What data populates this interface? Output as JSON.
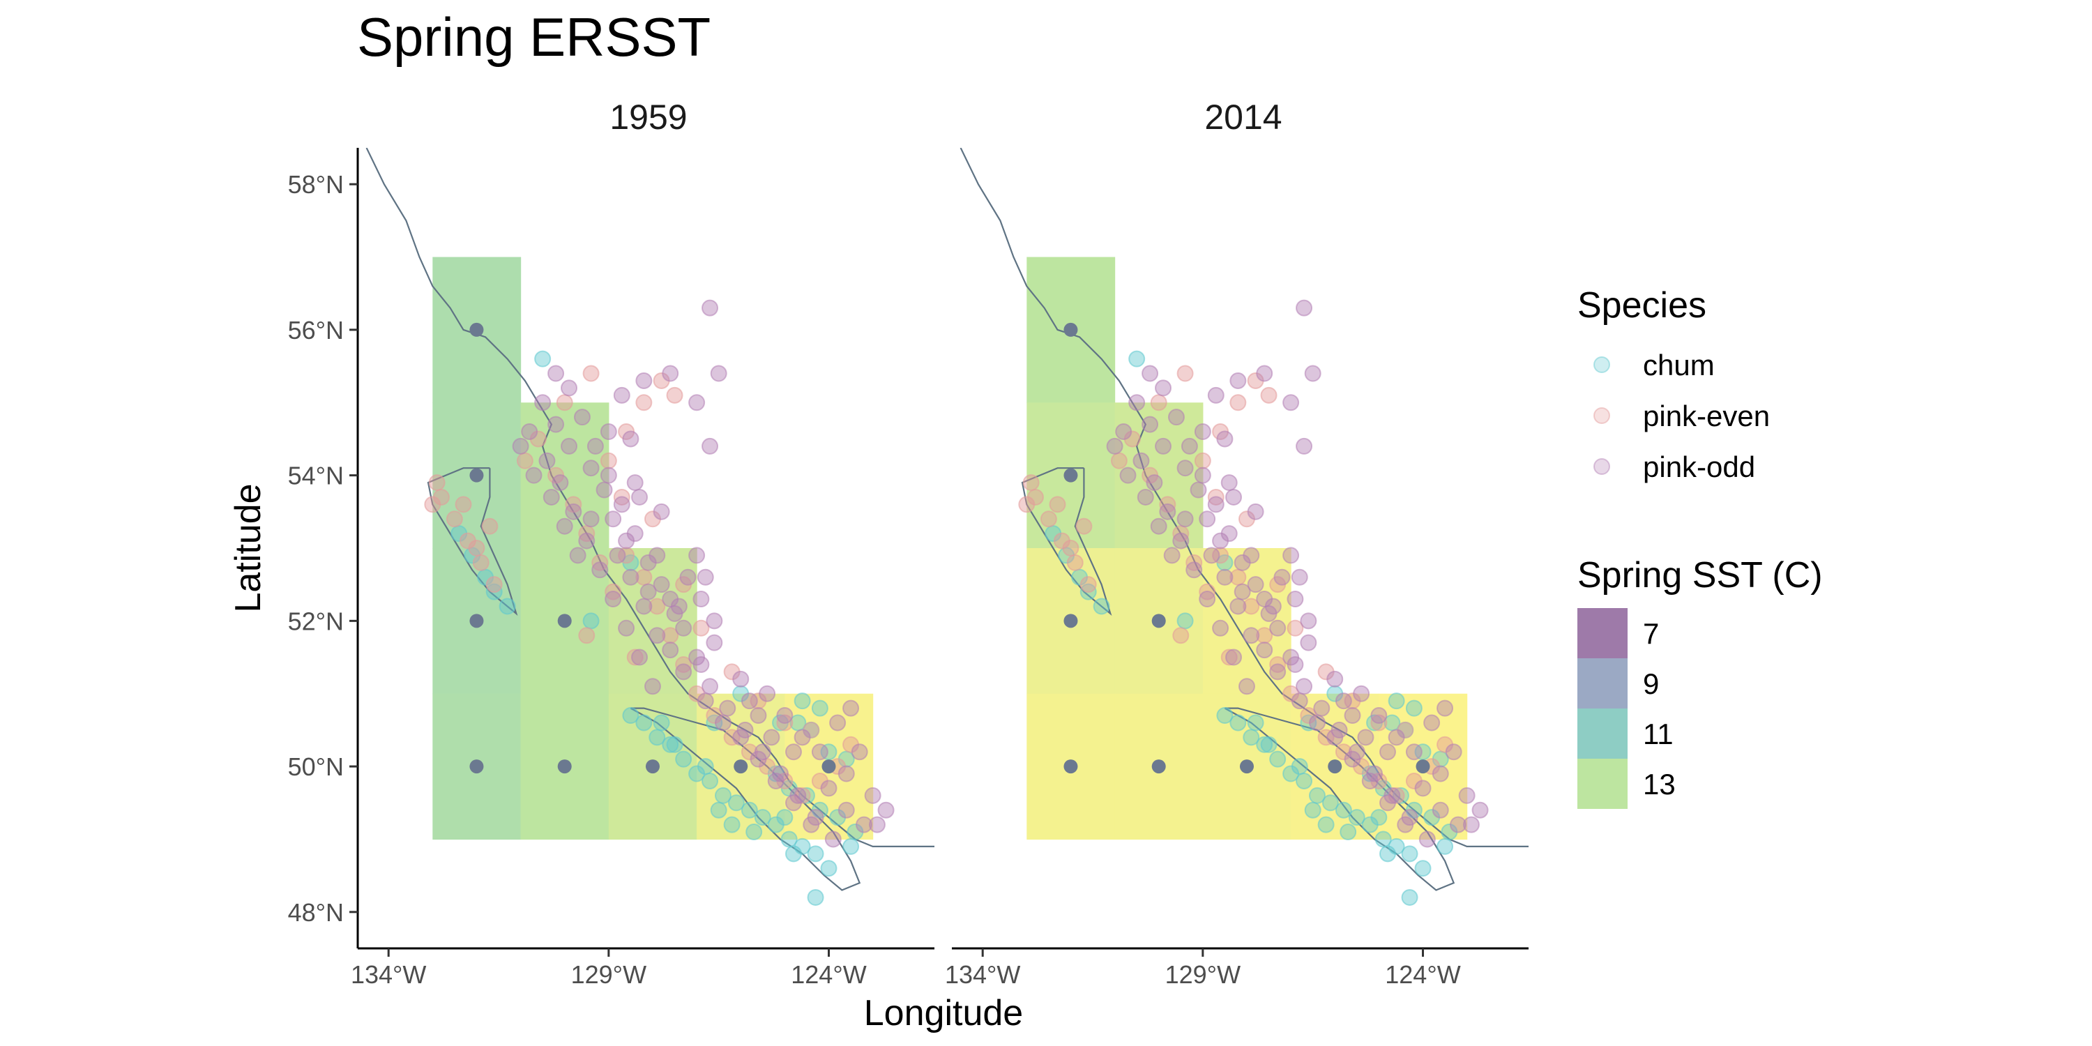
{
  "chart_data": {
    "type": "map",
    "title": "Spring ERSST",
    "xlabel": "Longitude",
    "ylabel": "Latitude",
    "xlim": [
      -134.7,
      -121.6
    ],
    "ylim": [
      47.5,
      58.5
    ],
    "x_ticks": [
      {
        "value": -134,
        "label": "134°W"
      },
      {
        "value": -129,
        "label": "129°W"
      },
      {
        "value": -124,
        "label": "124°W"
      }
    ],
    "y_ticks": [
      {
        "value": 48,
        "label": "48°N"
      },
      {
        "value": 50,
        "label": "50°N"
      },
      {
        "value": 52,
        "label": "52°N"
      },
      {
        "value": 54,
        "label": "54°N"
      },
      {
        "value": 56,
        "label": "56°N"
      },
      {
        "value": 58,
        "label": "58°N"
      }
    ],
    "panels": [
      {
        "year": "1959",
        "cells": [
          {
            "lon": -132,
            "lat": 56,
            "sst": 12.3
          },
          {
            "lon": -132,
            "lat": 54,
            "sst": 12.3
          },
          {
            "lon": -130,
            "lat": 54,
            "sst": 13.0
          },
          {
            "lon": -132,
            "lat": 52,
            "sst": 12.3
          },
          {
            "lon": -130,
            "lat": 52,
            "sst": 13.0
          },
          {
            "lon": -128,
            "lat": 52,
            "sst": 13.4
          },
          {
            "lon": -132,
            "lat": 50,
            "sst": 12.4
          },
          {
            "lon": -130,
            "lat": 50,
            "sst": 13.0
          },
          {
            "lon": -128,
            "lat": 50,
            "sst": 13.5
          },
          {
            "lon": -126,
            "lat": 50,
            "sst": 14.3
          },
          {
            "lon": -124,
            "lat": 50,
            "sst": 14.6
          }
        ],
        "cell_centres": [
          {
            "lon": -132,
            "lat": 56
          },
          {
            "lon": -132,
            "lat": 54
          },
          {
            "lon": -132,
            "lat": 52
          },
          {
            "lon": -130,
            "lat": 52
          },
          {
            "lon": -132,
            "lat": 50
          },
          {
            "lon": -130,
            "lat": 50
          },
          {
            "lon": -128,
            "lat": 50
          },
          {
            "lon": -126,
            "lat": 50
          },
          {
            "lon": -124,
            "lat": 50
          }
        ]
      },
      {
        "year": "2014",
        "cells": [
          {
            "lon": -132,
            "lat": 56,
            "sst": 13.0
          },
          {
            "lon": -132,
            "lat": 54,
            "sst": 13.3
          },
          {
            "lon": -130,
            "lat": 54,
            "sst": 13.5
          },
          {
            "lon": -132,
            "lat": 52,
            "sst": 14.3
          },
          {
            "lon": -130,
            "lat": 52,
            "sst": 14.3
          },
          {
            "lon": -128,
            "lat": 52,
            "sst": 14.5
          },
          {
            "lon": -132,
            "lat": 50,
            "sst": 14.5
          },
          {
            "lon": -130,
            "lat": 50,
            "sst": 14.5
          },
          {
            "lon": -128,
            "lat": 50,
            "sst": 14.5
          },
          {
            "lon": -126,
            "lat": 50,
            "sst": 14.6
          },
          {
            "lon": -124,
            "lat": 50,
            "sst": 14.7
          }
        ],
        "cell_centres": [
          {
            "lon": -132,
            "lat": 56
          },
          {
            "lon": -132,
            "lat": 54
          },
          {
            "lon": -132,
            "lat": 52
          },
          {
            "lon": -130,
            "lat": 52
          },
          {
            "lon": -132,
            "lat": 50
          },
          {
            "lon": -130,
            "lat": 50
          },
          {
            "lon": -128,
            "lat": 50
          },
          {
            "lon": -126,
            "lat": 50
          },
          {
            "lon": -124,
            "lat": 50
          }
        ]
      }
    ],
    "legends": {
      "species": {
        "title": "Species",
        "entries": [
          {
            "label": "chum",
            "color": "#5fc8cf"
          },
          {
            "label": "pink-even",
            "color": "#e39a9a"
          },
          {
            "label": "pink-odd",
            "color": "#b27fb4"
          }
        ]
      },
      "sst": {
        "title": "Spring SST (C)",
        "entries": [
          {
            "label": "7",
            "color": "#9e7aa9"
          },
          {
            "label": "9",
            "color": "#9ba9c4"
          },
          {
            "label": "11",
            "color": "#8ecdc4"
          },
          {
            "label": "13",
            "color": "#bde5a0"
          }
        ]
      }
    },
    "sites": {
      "chum": [
        [
          -124.0,
          48.6
        ],
        [
          -124.3,
          48.8
        ],
        [
          -124.6,
          48.9
        ],
        [
          -124.9,
          49.0
        ],
        [
          -125.2,
          49.2
        ],
        [
          -125.5,
          49.3
        ],
        [
          -125.8,
          49.4
        ],
        [
          -126.1,
          49.5
        ],
        [
          -126.4,
          49.6
        ],
        [
          -126.7,
          49.8
        ],
        [
          -127.0,
          49.9
        ],
        [
          -127.3,
          50.1
        ],
        [
          -127.6,
          50.3
        ],
        [
          -127.9,
          50.4
        ],
        [
          -128.2,
          50.6
        ],
        [
          -128.5,
          50.7
        ],
        [
          -123.5,
          48.9
        ],
        [
          -123.4,
          49.1
        ],
        [
          -123.8,
          49.3
        ],
        [
          -124.2,
          49.4
        ],
        [
          -124.5,
          49.6
        ],
        [
          -124.9,
          49.7
        ],
        [
          -125.2,
          49.9
        ],
        [
          -123.6,
          50.1
        ],
        [
          -124.0,
          50.2
        ],
        [
          -124.4,
          50.5
        ],
        [
          -124.2,
          50.8
        ],
        [
          -124.6,
          50.9
        ],
        [
          -125.1,
          50.6
        ],
        [
          -126.0,
          51.0
        ],
        [
          -126.6,
          50.6
        ],
        [
          -127.8,
          50.6
        ],
        [
          -127.5,
          50.3
        ],
        [
          -126.8,
          50.0
        ],
        [
          -124.3,
          48.2
        ],
        [
          -125.0,
          49.3
        ],
        [
          -126.2,
          49.2
        ],
        [
          -126.5,
          49.4
        ],
        [
          -125.7,
          49.1
        ],
        [
          -124.8,
          48.8
        ],
        [
          -131.6,
          52.4
        ],
        [
          -131.3,
          52.2
        ],
        [
          -131.8,
          52.6
        ],
        [
          -132.1,
          52.9
        ],
        [
          -132.4,
          53.2
        ],
        [
          -130.5,
          55.6
        ],
        [
          -129.4,
          52.0
        ],
        [
          -128.5,
          52.8
        ],
        [
          -124.7,
          50.6
        ]
      ],
      "pinkEven": [
        [
          -132.8,
          53.7
        ],
        [
          -132.5,
          53.4
        ],
        [
          -132.2,
          53.1
        ],
        [
          -131.9,
          52.8
        ],
        [
          -131.6,
          52.5
        ],
        [
          -132.9,
          53.9
        ],
        [
          -133.0,
          53.6
        ],
        [
          -132.3,
          53.6
        ],
        [
          -132.0,
          53.0
        ],
        [
          -131.7,
          53.3
        ],
        [
          -130.9,
          54.2
        ],
        [
          -130.6,
          54.5
        ],
        [
          -130.2,
          54.0
        ],
        [
          -129.8,
          53.6
        ],
        [
          -129.5,
          53.2
        ],
        [
          -129.2,
          52.8
        ],
        [
          -128.9,
          52.4
        ],
        [
          -128.6,
          52.9
        ],
        [
          -128.2,
          52.6
        ],
        [
          -127.9,
          52.2
        ],
        [
          -127.6,
          51.8
        ],
        [
          -127.3,
          51.4
        ],
        [
          -127.0,
          51.0
        ],
        [
          -126.6,
          50.7
        ],
        [
          -126.2,
          50.4
        ],
        [
          -125.8,
          50.2
        ],
        [
          -125.4,
          50.0
        ],
        [
          -125.0,
          49.8
        ],
        [
          -124.6,
          49.6
        ],
        [
          -124.2,
          49.8
        ],
        [
          -123.8,
          50.0
        ],
        [
          -123.5,
          50.3
        ],
        [
          -129.0,
          54.2
        ],
        [
          -128.6,
          54.6
        ],
        [
          -128.2,
          55.0
        ],
        [
          -127.8,
          55.3
        ],
        [
          -127.5,
          55.1
        ],
        [
          -129.4,
          55.4
        ],
        [
          -130.0,
          55.0
        ],
        [
          -128.7,
          53.7
        ],
        [
          -128.0,
          53.4
        ],
        [
          -127.3,
          52.5
        ],
        [
          -126.9,
          51.9
        ],
        [
          -126.2,
          51.3
        ],
        [
          -125.6,
          50.9
        ],
        [
          -125.0,
          50.6
        ],
        [
          -124.4,
          50.5
        ],
        [
          -128.4,
          51.5
        ],
        [
          -129.5,
          51.8
        ]
      ],
      "pinkOdd": [
        [
          -130.4,
          54.2
        ],
        [
          -130.1,
          53.9
        ],
        [
          -129.8,
          53.5
        ],
        [
          -129.5,
          53.1
        ],
        [
          -129.2,
          52.7
        ],
        [
          -128.9,
          52.3
        ],
        [
          -128.6,
          51.9
        ],
        [
          -128.3,
          51.5
        ],
        [
          -128.0,
          51.1
        ],
        [
          -127.6,
          52.3
        ],
        [
          -127.3,
          51.9
        ],
        [
          -127.0,
          51.5
        ],
        [
          -126.7,
          51.1
        ],
        [
          -126.3,
          50.8
        ],
        [
          -125.9,
          50.5
        ],
        [
          -125.5,
          50.2
        ],
        [
          -125.1,
          49.9
        ],
        [
          -124.7,
          49.6
        ],
        [
          -124.3,
          49.3
        ],
        [
          -123.9,
          49.0
        ],
        [
          -123.6,
          49.4
        ],
        [
          -123.2,
          49.2
        ],
        [
          -130.8,
          54.6
        ],
        [
          -130.5,
          55.0
        ],
        [
          -130.2,
          55.4
        ],
        [
          -129.9,
          55.2
        ],
        [
          -129.6,
          54.8
        ],
        [
          -129.3,
          54.4
        ],
        [
          -129.0,
          54.0
        ],
        [
          -128.7,
          53.6
        ],
        [
          -128.4,
          53.2
        ],
        [
          -128.1,
          52.8
        ],
        [
          -127.8,
          52.5
        ],
        [
          -127.5,
          52.1
        ],
        [
          -127.2,
          52.6
        ],
        [
          -126.9,
          52.3
        ],
        [
          -126.6,
          52.0
        ],
        [
          -128.7,
          55.1
        ],
        [
          -128.2,
          55.3
        ],
        [
          -127.6,
          55.4
        ],
        [
          -127.0,
          55.0
        ],
        [
          -126.7,
          56.3
        ],
        [
          -126.5,
          55.4
        ],
        [
          -126.7,
          54.4
        ],
        [
          -128.5,
          54.5
        ],
        [
          -129.1,
          53.8
        ],
        [
          -129.4,
          53.4
        ],
        [
          -128.8,
          52.9
        ],
        [
          -128.5,
          52.6
        ],
        [
          -128.2,
          52.2
        ],
        [
          -127.9,
          51.8
        ],
        [
          -127.6,
          51.6
        ],
        [
          -127.3,
          51.3
        ],
        [
          -126.8,
          50.9
        ],
        [
          -126.4,
          50.6
        ],
        [
          -126.0,
          50.4
        ],
        [
          -125.6,
          50.1
        ],
        [
          -125.2,
          49.8
        ],
        [
          -124.8,
          49.5
        ],
        [
          -124.4,
          49.2
        ],
        [
          -124.0,
          49.7
        ],
        [
          -123.6,
          49.9
        ],
        [
          -123.3,
          50.2
        ],
        [
          -129.7,
          52.9
        ],
        [
          -130.0,
          53.3
        ],
        [
          -130.3,
          53.7
        ],
        [
          -130.7,
          54.0
        ],
        [
          -131.0,
          54.4
        ],
        [
          -129.0,
          54.6
        ],
        [
          -128.4,
          53.9
        ],
        [
          -127.8,
          53.5
        ],
        [
          -127.9,
          52.9
        ],
        [
          -128.3,
          53.7
        ],
        [
          -127.0,
          52.9
        ],
        [
          -126.8,
          52.6
        ],
        [
          -125.4,
          51.0
        ],
        [
          -125.0,
          50.7
        ],
        [
          -124.6,
          50.4
        ],
        [
          -124.2,
          50.2
        ],
        [
          -123.8,
          50.6
        ],
        [
          -123.5,
          50.8
        ],
        [
          -124.8,
          50.2
        ],
        [
          -125.3,
          50.4
        ],
        [
          -129.9,
          54.4
        ],
        [
          -130.2,
          54.7
        ],
        [
          -129.4,
          54.1
        ],
        [
          -128.9,
          53.4
        ],
        [
          -128.6,
          53.1
        ],
        [
          -128.1,
          52.4
        ],
        [
          -127.4,
          52.2
        ],
        [
          -126.6,
          51.7
        ],
        [
          -126.0,
          51.2
        ],
        [
          -125.6,
          50.7
        ],
        [
          -125.8,
          50.9
        ],
        [
          -126.9,
          51.4
        ],
        [
          -122.7,
          49.4
        ],
        [
          -122.9,
          49.2
        ],
        [
          -123.0,
          49.6
        ]
      ]
    },
    "coastline": [
      [
        [
          -134.5,
          58.5
        ],
        [
          -134.1,
          58.0
        ],
        [
          -133.6,
          57.5
        ],
        [
          -133.3,
          57.0
        ],
        [
          -133.0,
          56.6
        ],
        [
          -132.6,
          56.3
        ],
        [
          -132.3,
          56.0
        ],
        [
          -131.8,
          55.9
        ],
        [
          -131.3,
          55.6
        ],
        [
          -130.9,
          55.3
        ],
        [
          -130.6,
          55.0
        ],
        [
          -130.3,
          54.7
        ],
        [
          -130.5,
          54.4
        ],
        [
          -130.3,
          54.0
        ],
        [
          -129.9,
          53.6
        ],
        [
          -129.4,
          53.1
        ],
        [
          -129.1,
          52.7
        ],
        [
          -128.6,
          52.3
        ],
        [
          -128.2,
          51.9
        ],
        [
          -127.9,
          51.6
        ],
        [
          -127.6,
          51.3
        ],
        [
          -127.2,
          51.0
        ],
        [
          -126.7,
          50.8
        ],
        [
          -126.2,
          50.6
        ],
        [
          -125.6,
          50.4
        ],
        [
          -125.2,
          50.1
        ],
        [
          -124.9,
          49.8
        ],
        [
          -124.6,
          49.6
        ],
        [
          -124.2,
          49.4
        ],
        [
          -123.8,
          49.2
        ],
        [
          -123.4,
          49.0
        ],
        [
          -123.0,
          48.9
        ],
        [
          -122.6,
          48.9
        ],
        [
          -121.6,
          48.9
        ]
      ],
      [
        [
          -131.7,
          54.1
        ],
        [
          -132.3,
          54.1
        ],
        [
          -132.7,
          54.0
        ],
        [
          -133.1,
          53.9
        ],
        [
          -133.0,
          53.6
        ],
        [
          -132.7,
          53.3
        ],
        [
          -132.4,
          53.0
        ],
        [
          -132.1,
          52.7
        ],
        [
          -131.7,
          52.4
        ],
        [
          -131.3,
          52.2
        ],
        [
          -131.1,
          52.1
        ],
        [
          -131.3,
          52.5
        ],
        [
          -131.6,
          52.9
        ],
        [
          -131.9,
          53.3
        ],
        [
          -131.7,
          53.7
        ],
        [
          -131.7,
          54.1
        ]
      ],
      [
        [
          -128.5,
          50.8
        ],
        [
          -127.9,
          50.6
        ],
        [
          -127.3,
          50.3
        ],
        [
          -126.7,
          50.0
        ],
        [
          -126.1,
          49.7
        ],
        [
          -125.6,
          49.3
        ],
        [
          -125.1,
          49.0
        ],
        [
          -124.6,
          48.8
        ],
        [
          -124.1,
          48.5
        ],
        [
          -123.7,
          48.3
        ],
        [
          -123.3,
          48.4
        ],
        [
          -123.5,
          48.7
        ],
        [
          -123.9,
          49.1
        ],
        [
          -124.4,
          49.4
        ],
        [
          -124.9,
          49.7
        ],
        [
          -125.4,
          50.0
        ],
        [
          -125.8,
          50.2
        ],
        [
          -126.4,
          50.5
        ],
        [
          -127.0,
          50.6
        ],
        [
          -127.6,
          50.7
        ],
        [
          -128.2,
          50.8
        ],
        [
          -128.5,
          50.8
        ]
      ]
    ]
  }
}
